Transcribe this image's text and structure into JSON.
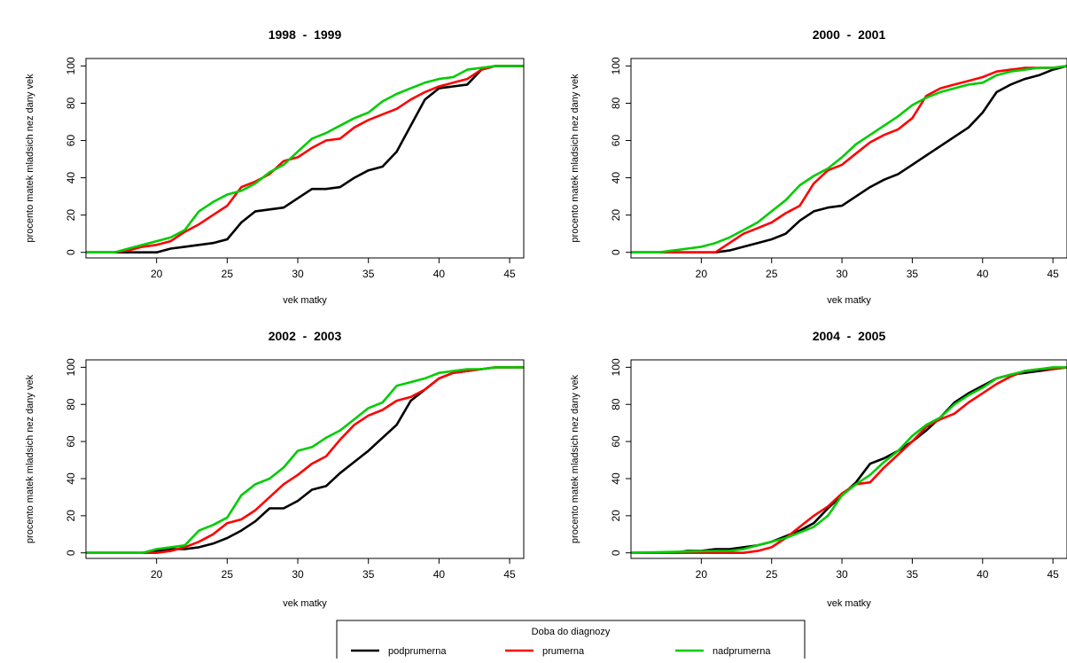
{
  "legend": {
    "title": "Doba do diagnozy",
    "items": [
      {
        "name": "podprumerna",
        "color": "#000000"
      },
      {
        "name": "prumerna",
        "color": "#ff0000"
      },
      {
        "name": "nadprumerna",
        "color": "#00cc00"
      }
    ]
  },
  "chart_data": [
    {
      "type": "line",
      "title": "1998  -  1999",
      "xlabel": "vek matky",
      "ylabel": "procento matek mladsich nez dany vek",
      "xlim": [
        15,
        46
      ],
      "ylim": [
        -3,
        104
      ],
      "xticks": [
        20,
        25,
        30,
        35,
        40,
        45
      ],
      "yticks": [
        0,
        20,
        40,
        60,
        80,
        100
      ],
      "series": [
        {
          "name": "podprumerna",
          "color": "#000000",
          "x": [
            15,
            19,
            20,
            21,
            22,
            23,
            24,
            25,
            26,
            27,
            28,
            29,
            30,
            31,
            32,
            33,
            34,
            35,
            36,
            37,
            38,
            39,
            40,
            41,
            42,
            43,
            44,
            45,
            46
          ],
          "y": [
            0,
            0,
            0,
            2,
            3,
            4,
            5,
            7,
            16,
            22,
            23,
            24,
            29,
            34,
            34,
            35,
            40,
            44,
            46,
            54,
            68,
            82,
            88,
            89,
            90,
            98,
            100,
            100,
            100
          ]
        },
        {
          "name": "prumerna",
          "color": "#ff0000",
          "x": [
            15,
            17,
            18,
            19,
            20,
            21,
            22,
            23,
            24,
            25,
            26,
            27,
            28,
            29,
            30,
            31,
            32,
            33,
            34,
            35,
            36,
            37,
            38,
            39,
            40,
            41,
            42,
            43,
            44,
            45,
            46
          ],
          "y": [
            0,
            0,
            1,
            3,
            4,
            6,
            11,
            15,
            20,
            25,
            35,
            38,
            42,
            49,
            51,
            56,
            60,
            61,
            67,
            71,
            74,
            77,
            82,
            86,
            89,
            91,
            93,
            98,
            100,
            100,
            100
          ]
        },
        {
          "name": "nadprumerna",
          "color": "#00cc00",
          "x": [
            15,
            17,
            18,
            19,
            20,
            21,
            22,
            23,
            24,
            25,
            26,
            27,
            28,
            29,
            30,
            31,
            32,
            33,
            34,
            35,
            36,
            37,
            38,
            39,
            40,
            41,
            42,
            43,
            44,
            45,
            46
          ],
          "y": [
            0,
            0,
            2,
            4,
            6,
            8,
            12,
            22,
            27,
            31,
            33,
            37,
            43,
            47,
            54,
            61,
            64,
            68,
            72,
            75,
            81,
            85,
            88,
            91,
            93,
            94,
            98,
            99,
            100,
            100,
            100
          ]
        }
      ]
    },
    {
      "type": "line",
      "title": "2000  -  2001",
      "xlabel": "vek matky",
      "ylabel": "procento matek mladsich nez dany vek",
      "xlim": [
        15,
        46
      ],
      "ylim": [
        -3,
        104
      ],
      "xticks": [
        20,
        25,
        30,
        35,
        40,
        45
      ],
      "yticks": [
        0,
        20,
        40,
        60,
        80,
        100
      ],
      "series": [
        {
          "name": "podprumerna",
          "color": "#000000",
          "x": [
            15,
            21,
            22,
            23,
            24,
            25,
            26,
            27,
            28,
            29,
            30,
            31,
            32,
            33,
            34,
            35,
            36,
            37,
            38,
            39,
            40,
            41,
            42,
            43,
            44,
            45,
            46
          ],
          "y": [
            0,
            0,
            1,
            3,
            5,
            7,
            10,
            17,
            22,
            24,
            25,
            30,
            35,
            39,
            42,
            47,
            52,
            57,
            62,
            67,
            75,
            86,
            90,
            93,
            95,
            98,
            100
          ]
        },
        {
          "name": "prumerna",
          "color": "#ff0000",
          "x": [
            15,
            21,
            22,
            23,
            24,
            25,
            26,
            27,
            28,
            29,
            30,
            31,
            32,
            33,
            34,
            35,
            36,
            37,
            38,
            39,
            40,
            41,
            42,
            43,
            44,
            45,
            46
          ],
          "y": [
            0,
            0,
            5,
            10,
            13,
            16,
            21,
            25,
            37,
            44,
            47,
            53,
            59,
            63,
            66,
            72,
            84,
            88,
            90,
            92,
            94,
            97,
            98,
            99,
            99,
            99,
            100
          ]
        },
        {
          "name": "nadprumerna",
          "color": "#00cc00",
          "x": [
            15,
            17,
            18,
            19,
            20,
            21,
            22,
            23,
            24,
            25,
            26,
            27,
            28,
            29,
            30,
            31,
            32,
            33,
            34,
            35,
            36,
            37,
            38,
            39,
            40,
            41,
            42,
            43,
            44,
            45,
            46
          ],
          "y": [
            0,
            0,
            1,
            2,
            3,
            5,
            8,
            12,
            16,
            22,
            28,
            36,
            41,
            45,
            51,
            58,
            63,
            68,
            73,
            79,
            83,
            86,
            88,
            90,
            91,
            95,
            97,
            98,
            99,
            99,
            100
          ]
        }
      ]
    },
    {
      "type": "line",
      "title": "2002  -  2003",
      "xlabel": "vek matky",
      "ylabel": "procento matek mladsich nez dany vek",
      "xlim": [
        15,
        46
      ],
      "ylim": [
        -3,
        104
      ],
      "xticks": [
        20,
        25,
        30,
        35,
        40,
        45
      ],
      "yticks": [
        0,
        20,
        40,
        60,
        80,
        100
      ],
      "series": [
        {
          "name": "podprumerna",
          "color": "#000000",
          "x": [
            15,
            19,
            20,
            21,
            22,
            23,
            24,
            25,
            26,
            27,
            28,
            29,
            30,
            31,
            32,
            33,
            34,
            35,
            36,
            37,
            38,
            39,
            40,
            41,
            42,
            43,
            44,
            45,
            46
          ],
          "y": [
            0,
            0,
            1,
            2,
            2,
            3,
            5,
            8,
            12,
            17,
            24,
            24,
            28,
            34,
            36,
            43,
            49,
            55,
            62,
            69,
            82,
            88,
            94,
            97,
            98,
            99,
            100,
            100,
            100
          ]
        },
        {
          "name": "prumerna",
          "color": "#ff0000",
          "x": [
            15,
            20,
            21,
            22,
            23,
            24,
            25,
            26,
            27,
            28,
            29,
            30,
            31,
            32,
            33,
            34,
            35,
            36,
            37,
            38,
            39,
            40,
            41,
            42,
            43,
            44,
            45,
            46
          ],
          "y": [
            0,
            0,
            1,
            3,
            6,
            10,
            16,
            18,
            23,
            30,
            37,
            42,
            48,
            52,
            61,
            69,
            74,
            77,
            82,
            84,
            88,
            94,
            97,
            98,
            99,
            100,
            100,
            100
          ]
        },
        {
          "name": "nadprumerna",
          "color": "#00cc00",
          "x": [
            15,
            19,
            20,
            21,
            22,
            23,
            24,
            25,
            26,
            27,
            28,
            29,
            30,
            31,
            32,
            33,
            34,
            35,
            36,
            37,
            38,
            39,
            40,
            41,
            42,
            43,
            44,
            45,
            46
          ],
          "y": [
            0,
            0,
            2,
            3,
            4,
            12,
            15,
            19,
            31,
            37,
            40,
            46,
            55,
            57,
            62,
            66,
            72,
            78,
            81,
            90,
            92,
            94,
            97,
            98,
            99,
            99,
            100,
            100,
            100
          ]
        }
      ]
    },
    {
      "type": "line",
      "title": "2004  -  2005",
      "xlabel": "vek matky",
      "ylabel": "procento matek mladsich nez dany vek",
      "xlim": [
        15,
        46
      ],
      "ylim": [
        -3,
        104
      ],
      "xticks": [
        20,
        25,
        30,
        35,
        40,
        45
      ],
      "yticks": [
        0,
        20,
        40,
        60,
        80,
        100
      ],
      "series": [
        {
          "name": "podprumerna",
          "color": "#000000",
          "x": [
            15,
            17,
            18,
            19,
            20,
            21,
            22,
            23,
            24,
            25,
            26,
            27,
            28,
            29,
            30,
            31,
            32,
            33,
            34,
            35,
            36,
            37,
            38,
            39,
            40,
            41,
            42,
            43,
            44,
            45,
            46
          ],
          "y": [
            0,
            0,
            0,
            1,
            1,
            2,
            2,
            3,
            4,
            6,
            9,
            12,
            16,
            24,
            31,
            38,
            48,
            51,
            55,
            60,
            66,
            73,
            81,
            86,
            90,
            94,
            96,
            97,
            98,
            99,
            100
          ]
        },
        {
          "name": "prumerna",
          "color": "#ff0000",
          "x": [
            15,
            21,
            22,
            23,
            24,
            25,
            26,
            27,
            28,
            29,
            30,
            31,
            32,
            33,
            34,
            35,
            36,
            37,
            38,
            39,
            40,
            41,
            42,
            43,
            44,
            45,
            46
          ],
          "y": [
            0,
            0,
            0,
            0,
            1,
            3,
            8,
            14,
            20,
            25,
            32,
            37,
            38,
            46,
            53,
            60,
            68,
            72,
            75,
            81,
            86,
            91,
            95,
            98,
            99,
            99,
            100
          ]
        },
        {
          "name": "nadprumerna",
          "color": "#00cc00",
          "x": [
            15,
            21,
            22,
            23,
            24,
            25,
            26,
            27,
            28,
            29,
            30,
            31,
            32,
            33,
            34,
            35,
            36,
            37,
            38,
            39,
            40,
            41,
            42,
            43,
            44,
            45,
            46
          ],
          "y": [
            0,
            1,
            1,
            2,
            4,
            6,
            8,
            11,
            14,
            20,
            31,
            37,
            42,
            49,
            55,
            63,
            69,
            73,
            80,
            85,
            89,
            94,
            96,
            98,
            99,
            100,
            100
          ]
        }
      ]
    }
  ]
}
